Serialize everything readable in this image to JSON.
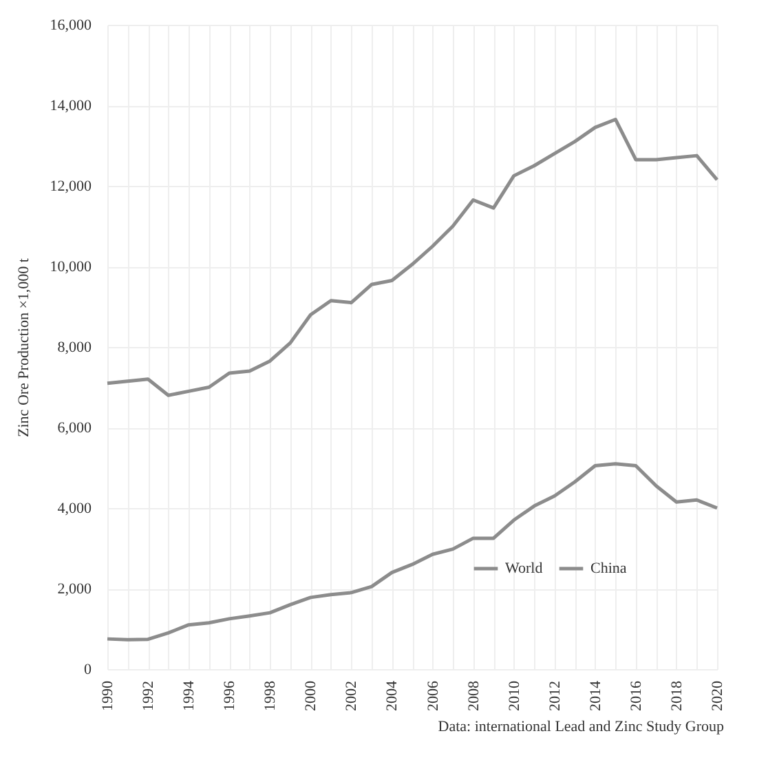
{
  "chart_data": {
    "type": "line",
    "ylabel": "Zinc Ore Production ×1,000 t",
    "annotations": [
      "Data: international Lead and Zinc Study Group"
    ],
    "x": [
      1990,
      1991,
      1992,
      1993,
      1994,
      1995,
      1996,
      1997,
      1998,
      1999,
      2000,
      2001,
      2002,
      2003,
      2004,
      2005,
      2006,
      2007,
      2008,
      2009,
      2010,
      2011,
      2012,
      2013,
      2014,
      2015,
      2016,
      2017,
      2018,
      2019,
      2020
    ],
    "series": [
      {
        "name": "World",
        "color": "#8c8c8c",
        "values": [
          7100,
          7150,
          7200,
          6800,
          6900,
          7000,
          7350,
          7400,
          7650,
          8100,
          8800,
          9150,
          9100,
          9550,
          9650,
          10050,
          10500,
          11000,
          11650,
          11450,
          12250,
          12500,
          12800,
          13100,
          13450,
          13650,
          12650,
          12650,
          12700,
          12750,
          12150
        ]
      },
      {
        "name": "China",
        "color": "#8c8c8c",
        "values": [
          750,
          730,
          740,
          900,
          1100,
          1150,
          1250,
          1320,
          1400,
          1600,
          1780,
          1850,
          1900,
          2050,
          2400,
          2600,
          2850,
          2980,
          3250,
          3250,
          3700,
          4050,
          4300,
          4650,
          5050,
          5100,
          5050,
          4550,
          4150,
          4200,
          4000
        ]
      }
    ],
    "xlim": [
      1990,
      2020
    ],
    "xticks": [
      1990,
      {
        "value": 1991,
        "label": null
      },
      1992,
      {
        "value": 1993,
        "label": null
      },
      1994,
      {
        "value": 1995,
        "label": null
      },
      1996,
      {
        "value": 1997,
        "label": null
      },
      1998,
      {
        "value": 1999,
        "label": null
      },
      2000,
      {
        "value": 2001,
        "label": null
      },
      2002,
      {
        "value": 2003,
        "label": null
      },
      2004,
      {
        "value": 2005,
        "label": null
      },
      2006,
      {
        "value": 2007,
        "label": null
      },
      2008,
      {
        "value": 2009,
        "label": null
      },
      2010,
      {
        "value": 2011,
        "label": null
      },
      2012,
      {
        "value": 2013,
        "label": null
      },
      2014,
      {
        "value": 2015,
        "label": null
      },
      2016,
      {
        "value": 2017,
        "label": null
      },
      2018,
      {
        "value": 2019,
        "label": null
      },
      2020
    ],
    "ylim": [
      0,
      16000
    ],
    "yticks": [
      0,
      {
        "value": 2000,
        "label": "2,000"
      },
      {
        "value": 4000,
        "label": "4,000"
      },
      {
        "value": 6000,
        "label": "6,000"
      },
      {
        "value": 8000,
        "label": "8,000"
      },
      {
        "value": 10000,
        "label": "10,000"
      },
      {
        "value": 12000,
        "label": "12,000"
      },
      {
        "value": 14000,
        "label": "14,000"
      },
      {
        "value": 16000,
        "label": "16,000"
      }
    ],
    "grid": true,
    "legend": "bottom right",
    "marker": "none",
    "line_style": "solid"
  }
}
